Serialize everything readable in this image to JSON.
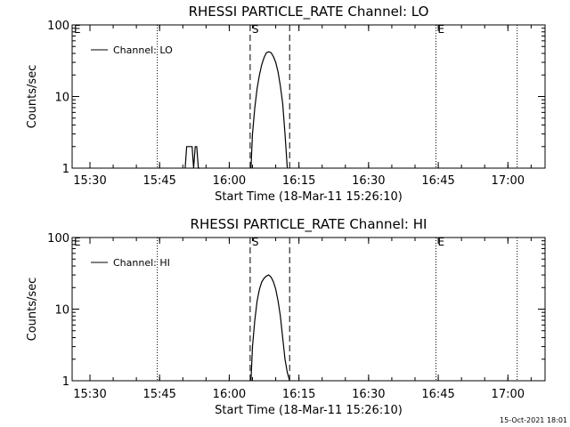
{
  "colors": {
    "background": "#ffffff",
    "foreground": "#000000"
  },
  "footer": {
    "timestamp": "15-Oct-2021 18:01"
  },
  "chart_data": [
    {
      "type": "line",
      "title": "RHESSI PARTICLE_RATE Channel: LO",
      "xlabel": "Start Time (18-Mar-11 15:26:10)",
      "ylabel": "Counts/sec",
      "y_scale": "log",
      "ylim": [
        1,
        100
      ],
      "xlim": [
        "15:26:10",
        "17:08:00"
      ],
      "x_ticks": [
        "15:30",
        "15:45",
        "16:00",
        "16:15",
        "16:30",
        "16:45",
        "17:00"
      ],
      "y_ticks": [
        "1",
        "10",
        "100"
      ],
      "legend": {
        "position": "top-left",
        "entries": [
          "Channel: LO"
        ]
      },
      "markers": [
        {
          "label": "E",
          "time": "15:26:10",
          "style": "none"
        },
        {
          "label": "",
          "time": "15:44:30",
          "style": "dotted"
        },
        {
          "label": "S",
          "time": "16:04:30",
          "style": "dashed"
        },
        {
          "label": "",
          "time": "16:13:00",
          "style": "dashed"
        },
        {
          "label": "E",
          "time": "16:44:30",
          "style": "dotted"
        },
        {
          "label": "",
          "time": "17:02:00",
          "style": "dotted"
        }
      ],
      "series": [
        {
          "name": "Channel: LO",
          "segments": [
            {
              "x": [
                "15:50:30",
                "15:50:50",
                "15:52:00",
                "15:52:20",
                "15:52:40",
                "15:53:00",
                "15:53:20",
                "15:53:40"
              ],
              "y": [
                1,
                2,
                2,
                1,
                2,
                2,
                1,
                1
              ]
            },
            {
              "x": [
                "16:04:40",
                "16:05:00",
                "16:05:30",
                "16:06:00",
                "16:06:30",
                "16:07:00",
                "16:07:30",
                "16:08:00",
                "16:08:30",
                "16:09:00",
                "16:09:30",
                "16:10:00",
                "16:10:30",
                "16:11:00",
                "16:11:30",
                "16:12:00",
                "16:12:30"
              ],
              "y": [
                1,
                3,
                7,
                13,
                20,
                28,
                35,
                41,
                42,
                41,
                36,
                30,
                22,
                14,
                8,
                3,
                1
              ]
            }
          ]
        }
      ]
    },
    {
      "type": "line",
      "title": "RHESSI PARTICLE_RATE Channel: HI",
      "xlabel": "Start Time (18-Mar-11 15:26:10)",
      "ylabel": "Counts/sec",
      "y_scale": "log",
      "ylim": [
        1,
        100
      ],
      "xlim": [
        "15:26:10",
        "17:08:00"
      ],
      "x_ticks": [
        "15:30",
        "15:45",
        "16:00",
        "16:15",
        "16:30",
        "16:45",
        "17:00"
      ],
      "y_ticks": [
        "1",
        "10",
        "100"
      ],
      "legend": {
        "position": "top-left",
        "entries": [
          "Channel: HI"
        ]
      },
      "markers": [
        {
          "label": "E",
          "time": "15:26:10",
          "style": "none"
        },
        {
          "label": "",
          "time": "15:44:30",
          "style": "dotted"
        },
        {
          "label": "S",
          "time": "16:04:30",
          "style": "dashed"
        },
        {
          "label": "",
          "time": "16:13:00",
          "style": "dashed"
        },
        {
          "label": "E",
          "time": "16:44:30",
          "style": "dotted"
        },
        {
          "label": "",
          "time": "17:02:00",
          "style": "dotted"
        }
      ],
      "series": [
        {
          "name": "Channel: HI",
          "segments": [
            {
              "x": [
                "16:04:40",
                "16:05:00",
                "16:05:30",
                "16:06:00",
                "16:06:30",
                "16:07:00",
                "16:07:30",
                "16:08:00",
                "16:08:30",
                "16:09:00",
                "16:09:30",
                "16:10:00",
                "16:10:30",
                "16:11:00",
                "16:11:30",
                "16:12:00",
                "16:12:30",
                "16:13:00"
              ],
              "y": [
                1,
                3,
                7,
                13,
                19,
                24,
                27,
                29,
                30,
                28,
                24,
                19,
                13,
                8,
                4,
                2,
                1.3,
                1
              ]
            }
          ]
        }
      ]
    }
  ]
}
